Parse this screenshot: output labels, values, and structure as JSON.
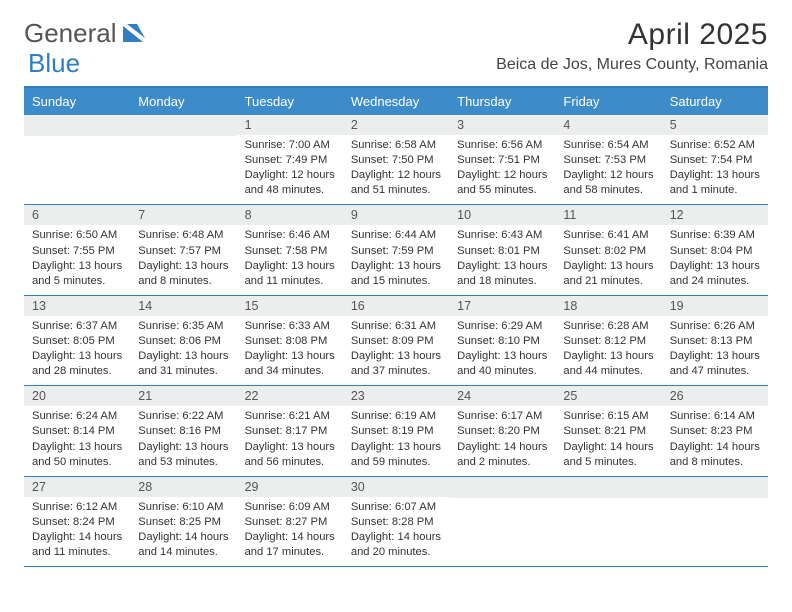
{
  "brand": {
    "word1": "General",
    "word2": "Blue"
  },
  "title": "April 2025",
  "location": "Beica de Jos, Mures County, Romania",
  "dayHeaders": [
    "Sunday",
    "Monday",
    "Tuesday",
    "Wednesday",
    "Thursday",
    "Friday",
    "Saturday"
  ],
  "colors": {
    "accent": "#3d8cc9",
    "accent_border": "#2f7fc2",
    "daynum_bg": "#eceeee",
    "text": "#333333",
    "background": "#ffffff"
  },
  "weeks": [
    [
      null,
      null,
      {
        "n": "1",
        "sr": "Sunrise: 7:00 AM",
        "ss": "Sunset: 7:49 PM",
        "dl": "Daylight: 12 hours and 48 minutes."
      },
      {
        "n": "2",
        "sr": "Sunrise: 6:58 AM",
        "ss": "Sunset: 7:50 PM",
        "dl": "Daylight: 12 hours and 51 minutes."
      },
      {
        "n": "3",
        "sr": "Sunrise: 6:56 AM",
        "ss": "Sunset: 7:51 PM",
        "dl": "Daylight: 12 hours and 55 minutes."
      },
      {
        "n": "4",
        "sr": "Sunrise: 6:54 AM",
        "ss": "Sunset: 7:53 PM",
        "dl": "Daylight: 12 hours and 58 minutes."
      },
      {
        "n": "5",
        "sr": "Sunrise: 6:52 AM",
        "ss": "Sunset: 7:54 PM",
        "dl": "Daylight: 13 hours and 1 minute."
      }
    ],
    [
      {
        "n": "6",
        "sr": "Sunrise: 6:50 AM",
        "ss": "Sunset: 7:55 PM",
        "dl": "Daylight: 13 hours and 5 minutes."
      },
      {
        "n": "7",
        "sr": "Sunrise: 6:48 AM",
        "ss": "Sunset: 7:57 PM",
        "dl": "Daylight: 13 hours and 8 minutes."
      },
      {
        "n": "8",
        "sr": "Sunrise: 6:46 AM",
        "ss": "Sunset: 7:58 PM",
        "dl": "Daylight: 13 hours and 11 minutes."
      },
      {
        "n": "9",
        "sr": "Sunrise: 6:44 AM",
        "ss": "Sunset: 7:59 PM",
        "dl": "Daylight: 13 hours and 15 minutes."
      },
      {
        "n": "10",
        "sr": "Sunrise: 6:43 AM",
        "ss": "Sunset: 8:01 PM",
        "dl": "Daylight: 13 hours and 18 minutes."
      },
      {
        "n": "11",
        "sr": "Sunrise: 6:41 AM",
        "ss": "Sunset: 8:02 PM",
        "dl": "Daylight: 13 hours and 21 minutes."
      },
      {
        "n": "12",
        "sr": "Sunrise: 6:39 AM",
        "ss": "Sunset: 8:04 PM",
        "dl": "Daylight: 13 hours and 24 minutes."
      }
    ],
    [
      {
        "n": "13",
        "sr": "Sunrise: 6:37 AM",
        "ss": "Sunset: 8:05 PM",
        "dl": "Daylight: 13 hours and 28 minutes."
      },
      {
        "n": "14",
        "sr": "Sunrise: 6:35 AM",
        "ss": "Sunset: 8:06 PM",
        "dl": "Daylight: 13 hours and 31 minutes."
      },
      {
        "n": "15",
        "sr": "Sunrise: 6:33 AM",
        "ss": "Sunset: 8:08 PM",
        "dl": "Daylight: 13 hours and 34 minutes."
      },
      {
        "n": "16",
        "sr": "Sunrise: 6:31 AM",
        "ss": "Sunset: 8:09 PM",
        "dl": "Daylight: 13 hours and 37 minutes."
      },
      {
        "n": "17",
        "sr": "Sunrise: 6:29 AM",
        "ss": "Sunset: 8:10 PM",
        "dl": "Daylight: 13 hours and 40 minutes."
      },
      {
        "n": "18",
        "sr": "Sunrise: 6:28 AM",
        "ss": "Sunset: 8:12 PM",
        "dl": "Daylight: 13 hours and 44 minutes."
      },
      {
        "n": "19",
        "sr": "Sunrise: 6:26 AM",
        "ss": "Sunset: 8:13 PM",
        "dl": "Daylight: 13 hours and 47 minutes."
      }
    ],
    [
      {
        "n": "20",
        "sr": "Sunrise: 6:24 AM",
        "ss": "Sunset: 8:14 PM",
        "dl": "Daylight: 13 hours and 50 minutes."
      },
      {
        "n": "21",
        "sr": "Sunrise: 6:22 AM",
        "ss": "Sunset: 8:16 PM",
        "dl": "Daylight: 13 hours and 53 minutes."
      },
      {
        "n": "22",
        "sr": "Sunrise: 6:21 AM",
        "ss": "Sunset: 8:17 PM",
        "dl": "Daylight: 13 hours and 56 minutes."
      },
      {
        "n": "23",
        "sr": "Sunrise: 6:19 AM",
        "ss": "Sunset: 8:19 PM",
        "dl": "Daylight: 13 hours and 59 minutes."
      },
      {
        "n": "24",
        "sr": "Sunrise: 6:17 AM",
        "ss": "Sunset: 8:20 PM",
        "dl": "Daylight: 14 hours and 2 minutes."
      },
      {
        "n": "25",
        "sr": "Sunrise: 6:15 AM",
        "ss": "Sunset: 8:21 PM",
        "dl": "Daylight: 14 hours and 5 minutes."
      },
      {
        "n": "26",
        "sr": "Sunrise: 6:14 AM",
        "ss": "Sunset: 8:23 PM",
        "dl": "Daylight: 14 hours and 8 minutes."
      }
    ],
    [
      {
        "n": "27",
        "sr": "Sunrise: 6:12 AM",
        "ss": "Sunset: 8:24 PM",
        "dl": "Daylight: 14 hours and 11 minutes."
      },
      {
        "n": "28",
        "sr": "Sunrise: 6:10 AM",
        "ss": "Sunset: 8:25 PM",
        "dl": "Daylight: 14 hours and 14 minutes."
      },
      {
        "n": "29",
        "sr": "Sunrise: 6:09 AM",
        "ss": "Sunset: 8:27 PM",
        "dl": "Daylight: 14 hours and 17 minutes."
      },
      {
        "n": "30",
        "sr": "Sunrise: 6:07 AM",
        "ss": "Sunset: 8:28 PM",
        "dl": "Daylight: 14 hours and 20 minutes."
      },
      null,
      null,
      null
    ]
  ]
}
